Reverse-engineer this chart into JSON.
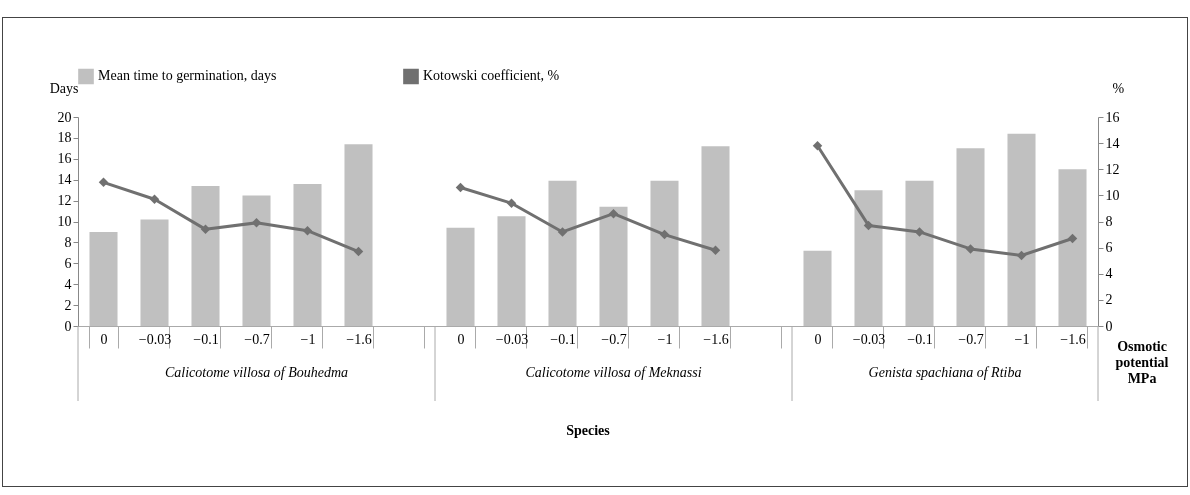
{
  "chart_data": {
    "type": "bar",
    "ylabel": "Days",
    "y2label": "%",
    "categories": [
      "0",
      "−0.03",
      "−0.1",
      "−0.7",
      "−1",
      "−1.6",
      null,
      "0",
      "−0.03",
      "−0.1",
      "−0.7",
      "−1",
      "−1.6",
      null,
      "0",
      "−0.03",
      "−0.1",
      "−0.7",
      "−1",
      "−1.6"
    ],
    "series": [
      {
        "name": "Mean time to germination,  days",
        "color": "#c0c0c0",
        "values": [
          9.0,
          10.2,
          13.4,
          12.5,
          13.6,
          17.4,
          null,
          9.4,
          10.5,
          13.9,
          11.4,
          13.9,
          17.2,
          null,
          7.2,
          13.0,
          13.9,
          17.0,
          18.4,
          15.0
        ]
      },
      {
        "name": "Kotowski coefficient, %",
        "type": "line",
        "axis": "y2",
        "color": "#707070",
        "values": [
          11.0,
          9.7,
          7.4,
          7.9,
          7.3,
          5.7,
          null,
          10.6,
          9.4,
          7.2,
          8.6,
          7.0,
          5.8,
          null,
          13.8,
          7.7,
          7.2,
          5.9,
          5.4,
          6.7
        ]
      }
    ],
    "ylim": [
      0,
      20
    ],
    "yticks": [
      0,
      2,
      4,
      6,
      8,
      10,
      12,
      14,
      16,
      18,
      20
    ],
    "y2lim": [
      0,
      16
    ],
    "y2ticks": [
      0,
      2,
      4,
      6,
      8,
      10,
      12,
      14,
      16
    ],
    "annotations": [
      "Calicotome villosa of Bouhedma",
      "Calicotome villosa of Meknassi",
      "Genista spachiana of Rtiba",
      "Osmotic potential MPa",
      "Species"
    ],
    "marker": "diamond",
    "legend": "top"
  }
}
